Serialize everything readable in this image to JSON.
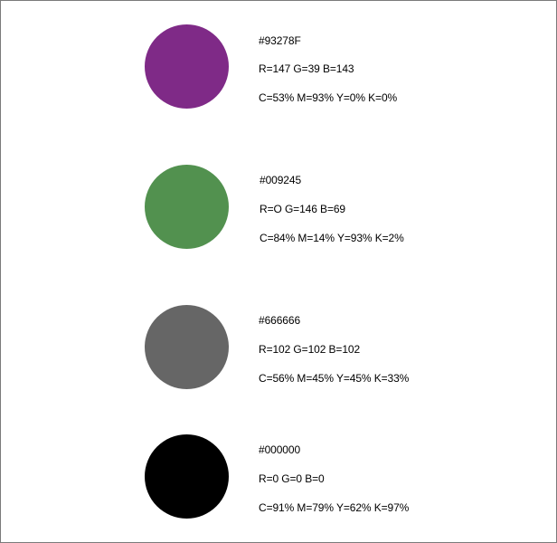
{
  "swatches": [
    {
      "name": "purple",
      "color": "#7F2A87",
      "hex": "#93278F",
      "rgb": "R=147 G=39 B=143",
      "cmyk": "C=53% M=93% Y=0% K=0%"
    },
    {
      "name": "green",
      "color": "#52914F",
      "hex": "#009245",
      "rgb": "R=O G=146 B=69",
      "cmyk": "C=84% M=14% Y=93% K=2%"
    },
    {
      "name": "gray",
      "color": "#666666",
      "hex": "#666666",
      "rgb": "R=102 G=102 B=102",
      "cmyk": "C=56% M=45% Y=45% K=33%"
    },
    {
      "name": "black",
      "color": "#000000",
      "hex": "#000000",
      "rgb": "R=0 G=0 B=0",
      "cmyk": "C=91% M=79% Y=62% K=97%"
    }
  ]
}
